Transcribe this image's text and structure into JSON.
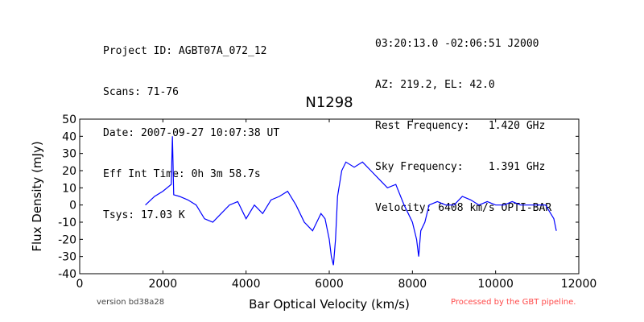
{
  "header": {
    "left_lines": [
      "Project ID: AGBT07A_072_12",
      "Scans: 71-76",
      "Date: 2007-09-27 10:07:38 UT",
      "Eff Int Time: 0h 3m 58.7s",
      "Tsys: 17.03 K"
    ],
    "right_lines": [
      "03:20:13.0 -02:06:51 J2000",
      "AZ: 219.2, EL: 42.0",
      "Rest Frequency:   1.420 GHz",
      "Sky Frequency:    1.391 GHz",
      "Velocity: 6408 km/s OPTI-BAR"
    ]
  },
  "footer": {
    "version": "version bd38a28",
    "processed": "Processed by the GBT pipeline.",
    "processed_color": "#ff4a4a"
  },
  "chart_data": {
    "type": "line",
    "title": "N1298",
    "xlabel": "Bar Optical Velocity (km/s)",
    "ylabel": "Flux Density (mJy)",
    "xlim": [
      0,
      12000
    ],
    "ylim": [
      -40,
      50
    ],
    "xticks": [
      0,
      2000,
      4000,
      6000,
      8000,
      10000,
      12000
    ],
    "yticks": [
      -40,
      -30,
      -20,
      -10,
      0,
      10,
      20,
      30,
      40,
      50
    ],
    "grid": false,
    "series": [
      {
        "color": "#0000ff",
        "x": [
          1580,
          1800,
          2000,
          2200,
          2230,
          2260,
          2400,
          2600,
          2800,
          3000,
          3200,
          3400,
          3600,
          3800,
          4000,
          4200,
          4400,
          4600,
          4800,
          5000,
          5200,
          5400,
          5600,
          5800,
          5900,
          6000,
          6050,
          6100,
          6150,
          6200,
          6300,
          6400,
          6600,
          6800,
          7000,
          7200,
          7400,
          7600,
          7800,
          7900,
          8000,
          8100,
          8150,
          8200,
          8300,
          8400,
          8600,
          8800,
          9000,
          9200,
          9400,
          9600,
          9800,
          10000,
          10200,
          10400,
          10600,
          10800,
          11000,
          11200,
          11400,
          11460
        ],
        "y": [
          0,
          5,
          8,
          12,
          40,
          6,
          5,
          3,
          0,
          -8,
          -10,
          -5,
          0,
          2,
          -8,
          0,
          -5,
          3,
          5,
          8,
          0,
          -10,
          -15,
          -5,
          -8,
          -20,
          -30,
          -35,
          -20,
          5,
          20,
          25,
          22,
          25,
          20,
          15,
          10,
          12,
          0,
          -5,
          -10,
          -20,
          -30,
          -15,
          -10,
          0,
          2,
          0,
          0,
          5,
          3,
          0,
          2,
          0,
          0,
          2,
          0,
          0,
          0,
          0,
          -8,
          -15
        ]
      }
    ]
  }
}
